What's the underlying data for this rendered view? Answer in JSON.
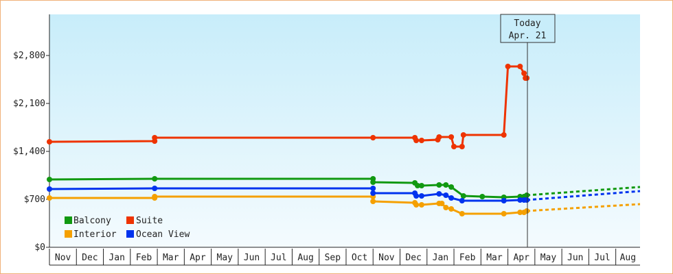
{
  "chart_data": {
    "type": "line",
    "title": "",
    "xlabel": "",
    "ylabel": "",
    "ylim": [
      0,
      3400
    ],
    "y_ticks": [
      0,
      700,
      1400,
      2100,
      2800
    ],
    "y_tick_labels": [
      "$0",
      "$700",
      "$1,400",
      "$2,100",
      "$2,800"
    ],
    "month_labels": [
      "Nov",
      "Dec",
      "Jan",
      "Feb",
      "Mar",
      "Apr",
      "May",
      "Jun",
      "Jul",
      "Aug",
      "Sep",
      "Oct",
      "Nov",
      "Dec",
      "Jan",
      "Feb",
      "Mar",
      "Apr",
      "May",
      "Jun",
      "Jul",
      "Aug"
    ],
    "x_range_month_index": [
      0,
      21.9
    ],
    "today_marker": {
      "line1": "Today",
      "line2": "Apr. 21",
      "month_index": 17.7
    },
    "grid": false,
    "legend_placement": "bottom-left",
    "series": [
      {
        "name": "Balcony",
        "color": "#119911",
        "points": [
          [
            0,
            990
          ],
          [
            3.9,
            1000
          ],
          [
            12.0,
            1000
          ],
          [
            12.0,
            950
          ],
          [
            13.55,
            940
          ],
          [
            13.65,
            900
          ],
          [
            13.8,
            900
          ],
          [
            14.45,
            910
          ],
          [
            14.7,
            910
          ],
          [
            14.9,
            880
          ],
          [
            15.35,
            750
          ],
          [
            16.05,
            740
          ],
          [
            16.85,
            730
          ],
          [
            17.45,
            740
          ],
          [
            17.6,
            740
          ],
          [
            17.7,
            760
          ]
        ],
        "projection": [
          [
            17.7,
            760
          ],
          [
            21.9,
            880
          ]
        ]
      },
      {
        "name": "Suite",
        "color": "#ee3300",
        "points": [
          [
            0,
            1540
          ],
          [
            3.9,
            1550
          ],
          [
            3.9,
            1600
          ],
          [
            12.0,
            1600
          ],
          [
            13.55,
            1600
          ],
          [
            13.6,
            1560
          ],
          [
            13.8,
            1560
          ],
          [
            14.4,
            1570
          ],
          [
            14.45,
            1610
          ],
          [
            14.9,
            1610
          ],
          [
            15.0,
            1470
          ],
          [
            15.3,
            1470
          ],
          [
            15.35,
            1640
          ],
          [
            16.85,
            1640
          ],
          [
            17.0,
            2640
          ],
          [
            17.45,
            2640
          ],
          [
            17.6,
            2540
          ],
          [
            17.65,
            2470
          ],
          [
            17.7,
            2470
          ]
        ],
        "projection": []
      },
      {
        "name": "Interior",
        "color": "#f5a000",
        "points": [
          [
            0,
            720
          ],
          [
            3.9,
            720
          ],
          [
            3.9,
            740
          ],
          [
            12.0,
            740
          ],
          [
            12.0,
            670
          ],
          [
            13.55,
            650
          ],
          [
            13.6,
            620
          ],
          [
            13.8,
            620
          ],
          [
            14.45,
            640
          ],
          [
            14.55,
            640
          ],
          [
            14.7,
            580
          ],
          [
            14.9,
            560
          ],
          [
            15.3,
            490
          ],
          [
            16.85,
            490
          ],
          [
            17.45,
            510
          ],
          [
            17.6,
            510
          ],
          [
            17.7,
            530
          ]
        ],
        "projection": [
          [
            17.7,
            530
          ],
          [
            21.9,
            630
          ]
        ]
      },
      {
        "name": "Ocean View",
        "color": "#0033ee",
        "points": [
          [
            0,
            850
          ],
          [
            3.9,
            860
          ],
          [
            12.0,
            860
          ],
          [
            12.0,
            790
          ],
          [
            13.55,
            790
          ],
          [
            13.6,
            750
          ],
          [
            13.8,
            750
          ],
          [
            14.45,
            780
          ],
          [
            14.7,
            760
          ],
          [
            14.9,
            720
          ],
          [
            15.3,
            680
          ],
          [
            16.85,
            680
          ],
          [
            17.45,
            690
          ],
          [
            17.6,
            690
          ],
          [
            17.7,
            690
          ]
        ],
        "projection": [
          [
            17.7,
            690
          ],
          [
            21.9,
            820
          ]
        ]
      }
    ]
  },
  "legend": {
    "items": [
      {
        "name": "Balcony",
        "color": "#119911"
      },
      {
        "name": "Suite",
        "color": "#ee3300"
      },
      {
        "name": "Interior",
        "color": "#f5a000"
      },
      {
        "name": "Ocean View",
        "color": "#0033ee"
      }
    ]
  }
}
